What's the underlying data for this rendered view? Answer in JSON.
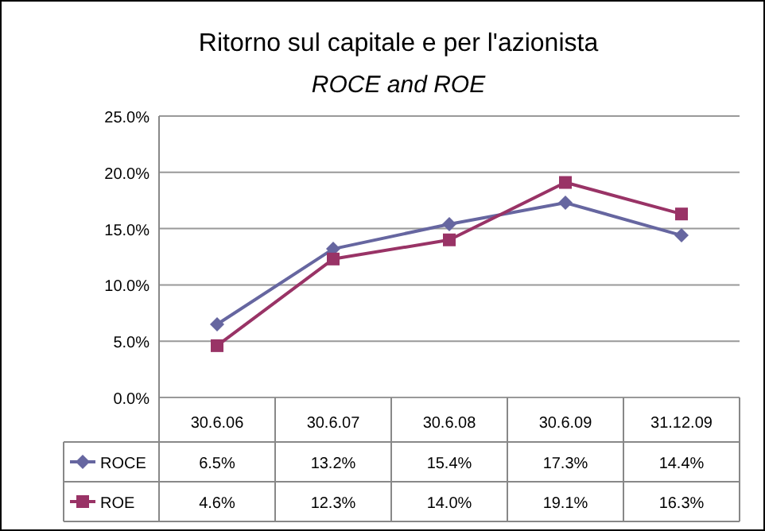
{
  "chart_data": {
    "type": "line",
    "title": "Ritorno sul capitale e per l'azionista",
    "subtitle": "ROCE and ROE",
    "categories": [
      "30.6.06",
      "30.6.07",
      "30.6.08",
      "30.6.09",
      "31.12.09"
    ],
    "series": [
      {
        "name": "ROCE",
        "color": "#6666a0",
        "marker": "diamond",
        "values": [
          6.5,
          13.2,
          15.4,
          17.3,
          14.4
        ],
        "value_labels": [
          "6.5%",
          "13.2%",
          "15.4%",
          "17.3%",
          "14.4%"
        ]
      },
      {
        "name": "ROE",
        "color": "#993366",
        "marker": "square",
        "values": [
          4.6,
          12.3,
          14.0,
          19.1,
          16.3
        ],
        "value_labels": [
          "4.6%",
          "12.3%",
          "14.0%",
          "19.1%",
          "16.3%"
        ]
      }
    ],
    "ylim": [
      0,
      25
    ],
    "yticks": [
      {
        "value": 0,
        "label": "0.0%"
      },
      {
        "value": 5,
        "label": "5.0%"
      },
      {
        "value": 10,
        "label": "10.0%"
      },
      {
        "value": 15,
        "label": "15.0%"
      },
      {
        "value": 20,
        "label": "20.0%"
      },
      {
        "value": 25,
        "label": "25.0%"
      }
    ],
    "grid": "y",
    "legend": "bottom",
    "line_style": "solid"
  }
}
